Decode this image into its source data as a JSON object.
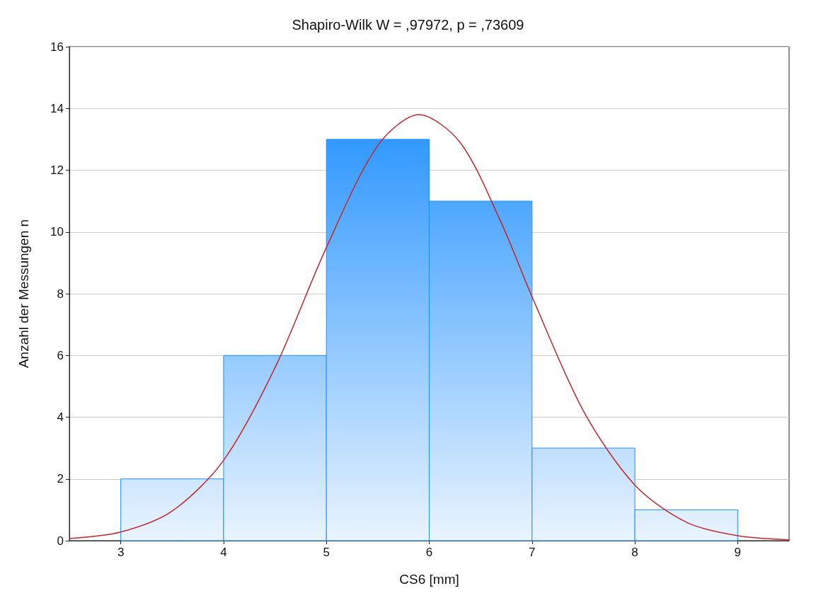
{
  "chart_data": {
    "type": "histogram",
    "title": "Shapiro-Wilk W = ,97972, p = ,73609",
    "xlabel": "CS6 [mm]",
    "ylabel": "Anzahl der Messungen n",
    "bins": [
      3,
      4,
      5,
      6,
      7,
      8,
      9
    ],
    "values": [
      2,
      6,
      13,
      11,
      3,
      1
    ],
    "color": "#1e8fff",
    "series": [
      {
        "type": "line",
        "color": "#c0282d",
        "x": [
          2.5,
          3,
          3.5,
          4,
          4.5,
          5,
          5.5,
          5.9,
          6.3,
          6.7,
          7,
          7.5,
          8,
          8.5,
          9,
          9.5
        ],
        "values": [
          0.07,
          0.28,
          0.96,
          2.6,
          5.6,
          9.5,
          12.8,
          13.8,
          12.9,
          10.3,
          7.9,
          4.2,
          1.8,
          0.6,
          0.16,
          0.03
        ]
      }
    ],
    "xlim": [
      2.5,
      9.5
    ],
    "xticks": [
      3,
      4,
      5,
      6,
      7,
      8,
      9
    ],
    "ylim": [
      0,
      16
    ],
    "yticks": [
      0,
      2,
      4,
      6,
      8,
      10,
      12,
      14,
      16
    ],
    "grid": "y",
    "marker": "none"
  }
}
